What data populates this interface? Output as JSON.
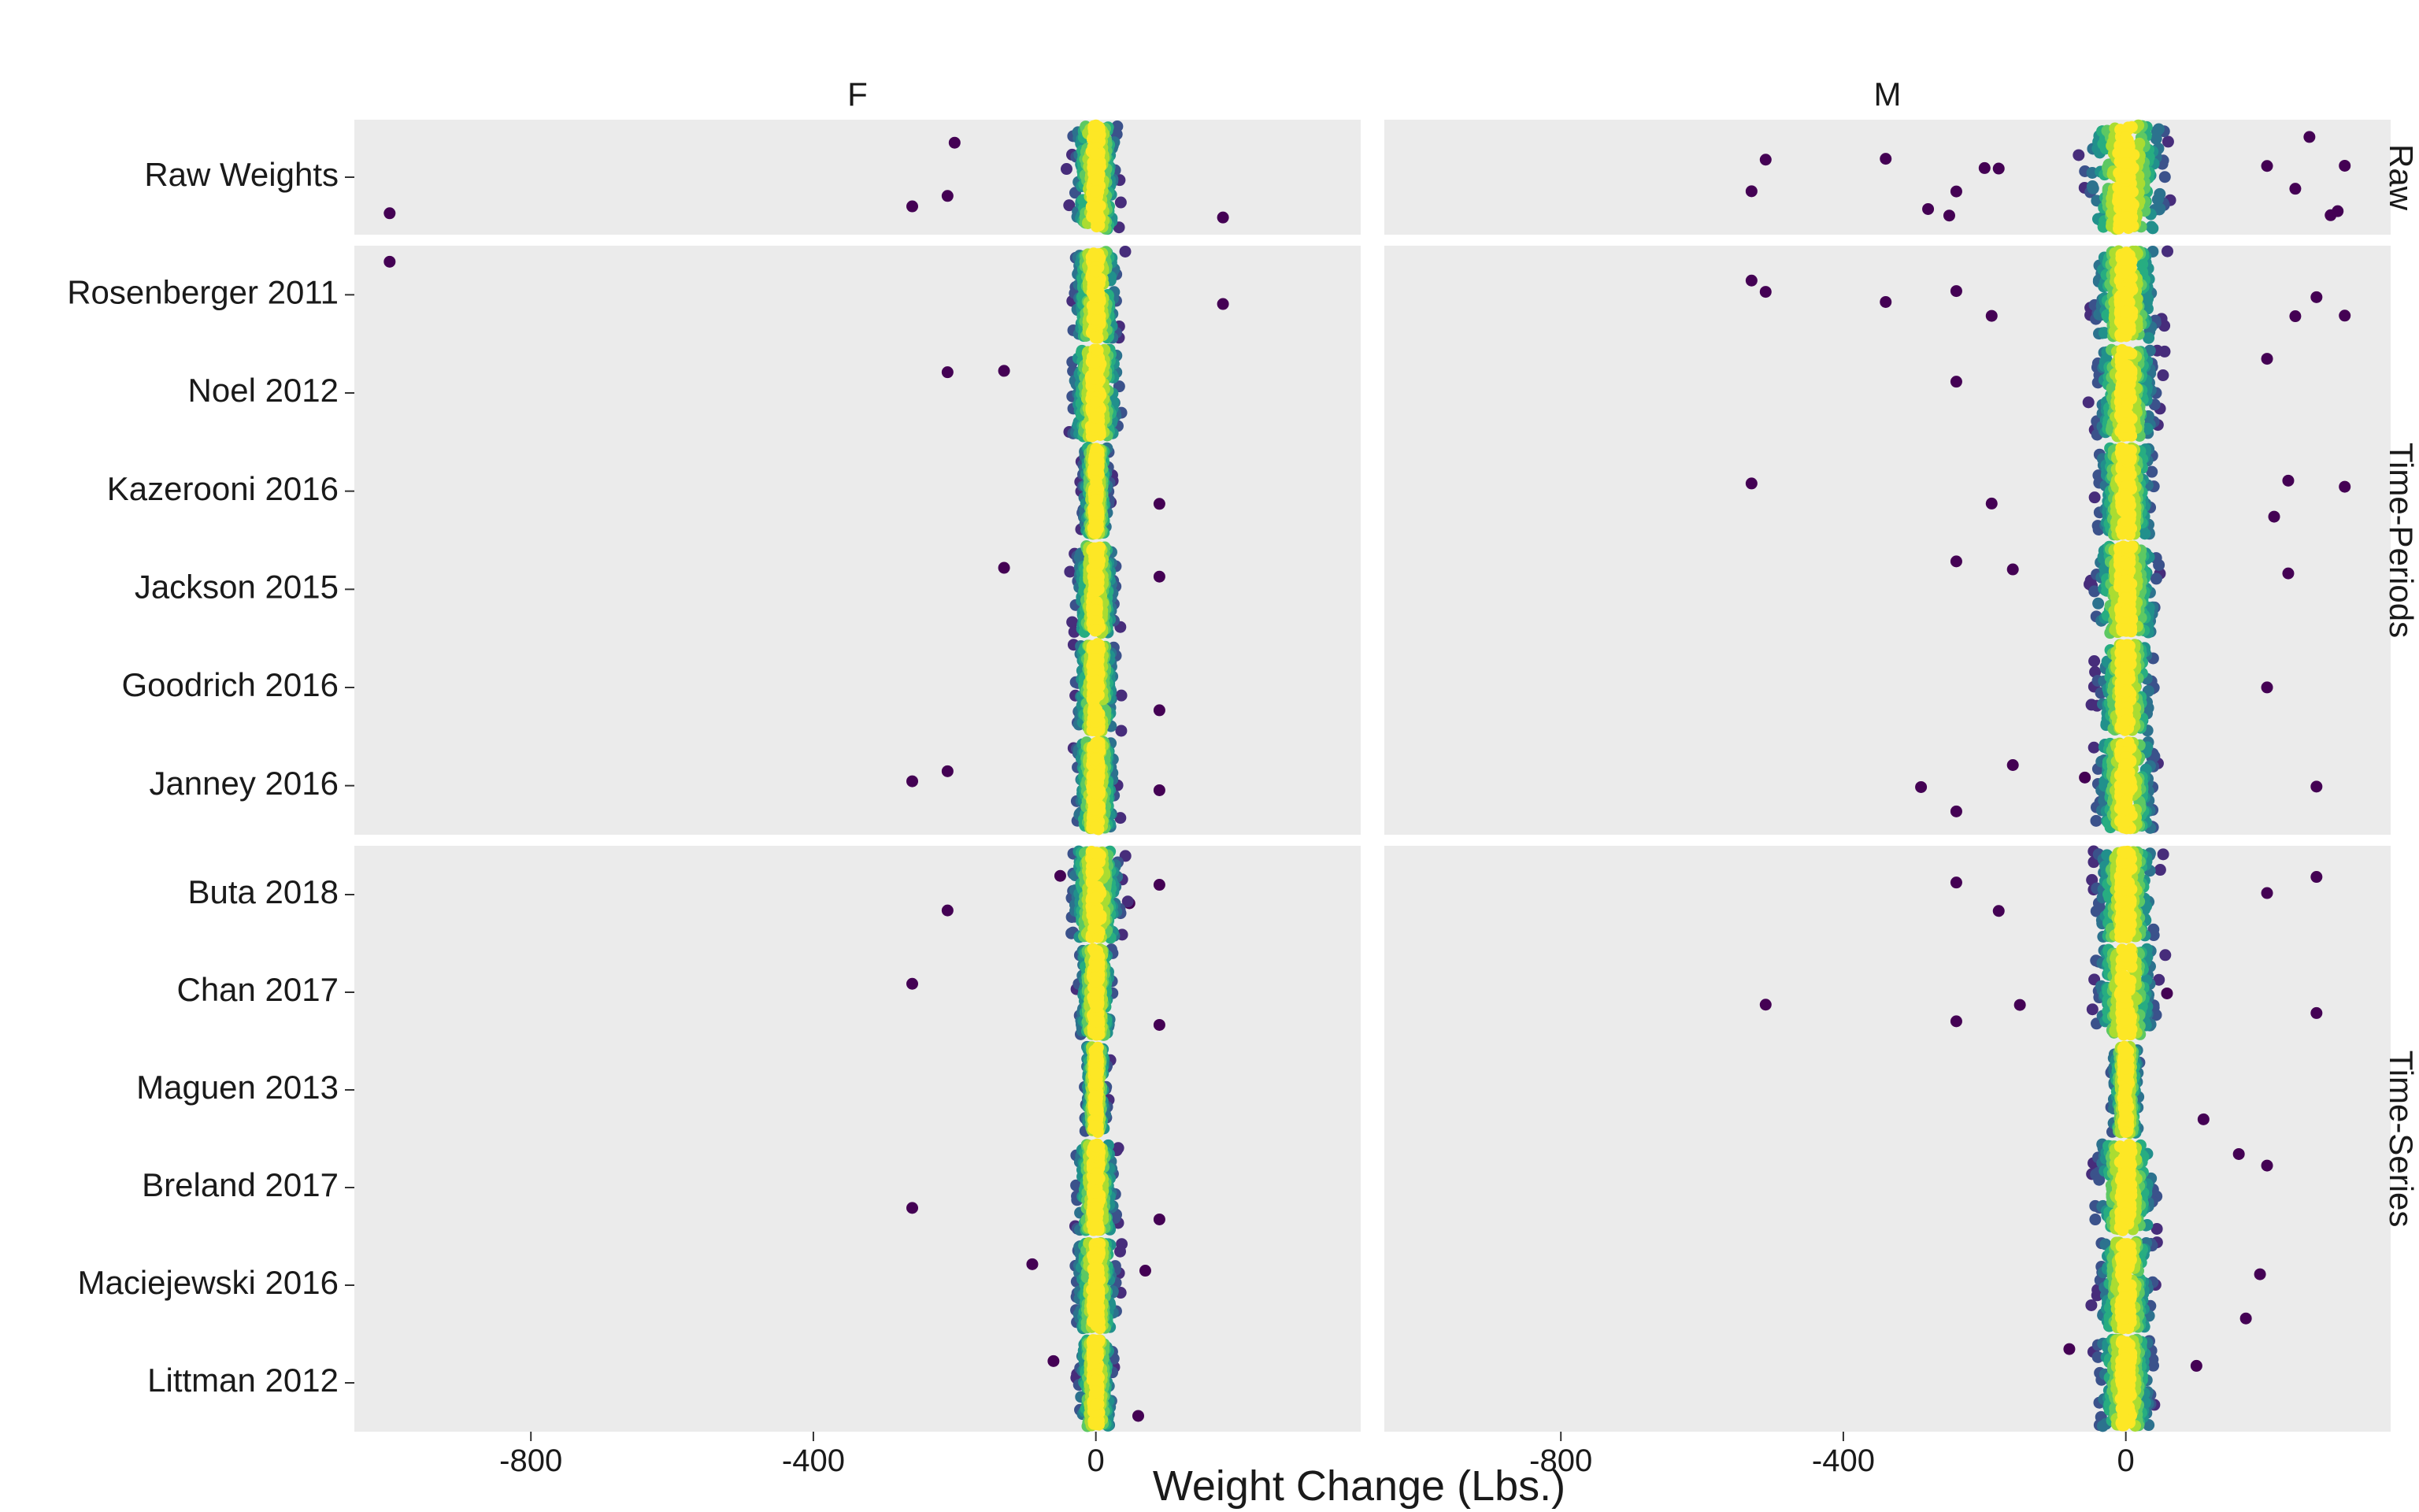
{
  "chart_data": {
    "type": "scatter",
    "subtype": "jittered strip plot, faceted",
    "title": "",
    "xlabel": "Weight Change (Lbs.)",
    "ylabel": "",
    "xlim": [
      -1050,
      375
    ],
    "x_ticks": [
      "-800",
      "-400",
      "0"
    ],
    "x_tick_values": [
      -800,
      -400,
      0
    ],
    "grid": false,
    "panel_background": "#ebebeb",
    "columns": [
      "F",
      "M"
    ],
    "rows": [
      {
        "name": "Raw",
        "categories": [
          "Raw Weights"
        ]
      },
      {
        "name": "Time-Periods",
        "categories": [
          "Rosenberger 2011",
          "Noel 2012",
          "Kazerooni 2016",
          "Jackson 2015",
          "Goodrich 2016",
          "Janney 2016"
        ]
      },
      {
        "name": "Time-Series",
        "categories": [
          "Buta 2018",
          "Chan 2017",
          "Maguen 2013",
          "Breland 2017",
          "Maciejewski 2016",
          "Littman 2012"
        ]
      }
    ],
    "color_scale": {
      "name": "viridis (point density)",
      "low": "#440154",
      "mid": "#21908c",
      "high": "#fde725"
    },
    "series": [
      {
        "facet": "F",
        "points": {
          "Raw Weights": [
            -1000,
            -260,
            -210,
            -200,
            180
          ],
          "Rosenberger 2011": [
            -1000,
            180
          ],
          "Noel 2012": [
            -210,
            -130
          ],
          "Kazerooni 2016": [
            90
          ],
          "Jackson 2015": [
            -130,
            90
          ],
          "Goodrich 2016": [
            90
          ],
          "Janney 2016": [
            -260,
            -210,
            90
          ],
          "Buta 2018": [
            -210,
            90
          ],
          "Chan 2017": [
            -260,
            90
          ],
          "Maguen 2013": [],
          "Breland 2017": [
            -260,
            90
          ],
          "Maciejewski 2016": [
            -90,
            70
          ],
          "Littman 2012": [
            -60,
            60
          ]
        },
        "bulk_range": {
          "Raw Weights": [
            -90,
            90
          ],
          "Rosenberger 2011": [
            -90,
            70
          ],
          "Noel 2012": [
            -100,
            60
          ],
          "Kazerooni 2016": [
            -55,
            50
          ],
          "Jackson 2015": [
            -80,
            60
          ],
          "Goodrich 2016": [
            -80,
            60
          ],
          "Janney 2016": [
            -80,
            60
          ],
          "Buta 2018": [
            -100,
            60
          ],
          "Chan 2017": [
            -70,
            50
          ],
          "Maguen 2013": [
            -45,
            45
          ],
          "Breland 2017": [
            -80,
            60
          ],
          "Maciejewski 2016": [
            -80,
            70
          ],
          "Littman 2012": [
            -70,
            60
          ]
        }
      },
      {
        "facet": "M",
        "points": {
          "Raw Weights": [
            -530,
            -510,
            -340,
            -280,
            -250,
            -240,
            -200,
            -180,
            200,
            240,
            260,
            290,
            300,
            310
          ],
          "Rosenberger 2011": [
            -530,
            -510,
            -340,
            -240,
            -190,
            240,
            270,
            310
          ],
          "Noel 2012": [
            -240,
            200
          ],
          "Kazerooni 2016": [
            -530,
            -190,
            210,
            230,
            310
          ],
          "Jackson 2015": [
            -240,
            -160,
            230
          ],
          "Goodrich 2016": [
            200
          ],
          "Janney 2016": [
            -290,
            -240,
            -160,
            270
          ],
          "Buta 2018": [
            -240,
            -180,
            200,
            270
          ],
          "Chan 2017": [
            -510,
            -240,
            -150,
            270
          ],
          "Maguen 2013": [
            110
          ],
          "Breland 2017": [
            160,
            200
          ],
          "Maciejewski 2016": [
            170,
            190
          ],
          "Littman 2012": [
            -80,
            100
          ]
        },
        "bulk_range": {
          "Raw Weights": [
            -150,
            160
          ],
          "Rosenberger 2011": [
            -120,
            130
          ],
          "Noel 2012": [
            -120,
            110
          ],
          "Kazerooni 2016": [
            -100,
            110
          ],
          "Jackson 2015": [
            -110,
            130
          ],
          "Goodrich 2016": [
            -110,
            110
          ],
          "Janney 2016": [
            -110,
            120
          ],
          "Buta 2018": [
            -120,
            120
          ],
          "Chan 2017": [
            -120,
            110
          ],
          "Maguen 2013": [
            -60,
            50
          ],
          "Breland 2017": [
            -110,
            120
          ],
          "Maciejewski 2016": [
            -100,
            110
          ],
          "Littman 2012": [
            -90,
            110
          ]
        }
      }
    ]
  }
}
